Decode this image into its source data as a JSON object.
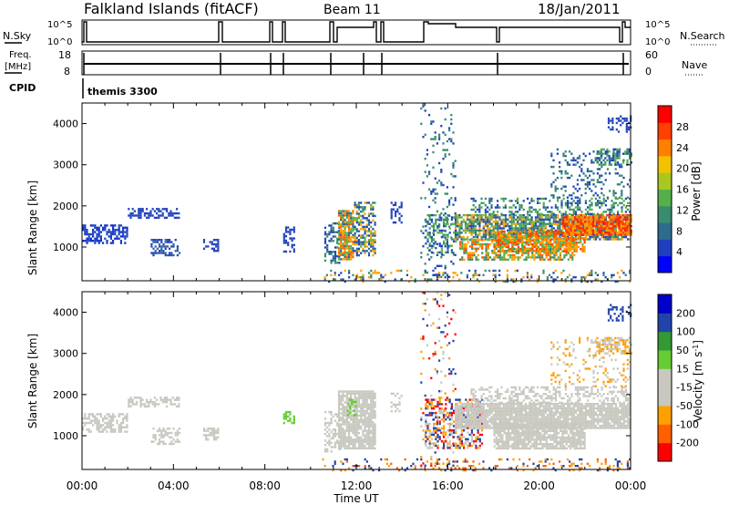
{
  "header": {
    "title": "Falkland Islands (fitACF)",
    "beam": "Beam 11",
    "date": "18/Jan/2011"
  },
  "status_panels": {
    "nsky_label": "N.Sky",
    "nsearch_label": "N.Search",
    "nsky_ticks": [
      "10^5",
      "10^0"
    ],
    "nsearch_ticks": [
      "10^5",
      "10^0"
    ],
    "freq_label_top": "Freq.",
    "freq_label_bottom": "[MHz]",
    "freq_ticks": [
      "18",
      "8"
    ],
    "nave_label": "Nave",
    "nave_ticks": [
      "60",
      "0"
    ],
    "cpid_label": "CPID",
    "cpid_value": "themis 3300"
  },
  "chart_data": [
    {
      "type": "heatmap",
      "id": "power",
      "ylabel": "Slant Range [km]",
      "yticks": [
        "4000",
        "3000",
        "2000",
        "1000"
      ],
      "ylim": [
        180,
        4500
      ],
      "xlim": [
        0,
        24
      ],
      "colorbar_label": "Power [dB]",
      "colorbar_ticks": [
        "28",
        "24",
        "20",
        "16",
        "12",
        "8",
        "4"
      ],
      "colorbar_colors": [
        "#0000ff",
        "#1f3fbf",
        "#2e6b8f",
        "#3a8c6e",
        "#55b04a",
        "#a8c820",
        "#f2c200",
        "#ff8000",
        "#ff4000",
        "#ff0000"
      ],
      "blobs": [
        {
          "t": [
            0.0,
            2.0
          ],
          "r": [
            1100,
            1550
          ],
          "c": [
            "#2244bb",
            "#1133cc"
          ],
          "d": 0.55
        },
        {
          "t": [
            2.0,
            4.2
          ],
          "r": [
            1700,
            1950
          ],
          "c": [
            "#2244bb"
          ],
          "d": 0.45
        },
        {
          "t": [
            3.0,
            4.3
          ],
          "r": [
            800,
            1200
          ],
          "c": [
            "#2244bb",
            "#3366aa"
          ],
          "d": 0.5
        },
        {
          "t": [
            5.3,
            6.0
          ],
          "r": [
            900,
            1200
          ],
          "c": [
            "#2244bb"
          ],
          "d": 0.6
        },
        {
          "t": [
            8.8,
            9.3
          ],
          "r": [
            900,
            1500
          ],
          "c": [
            "#2244bb"
          ],
          "d": 0.5
        },
        {
          "t": [
            10.6,
            11.3
          ],
          "r": [
            600,
            1600
          ],
          "c": [
            "#2244bb",
            "#3a8c6e"
          ],
          "d": 0.45
        },
        {
          "t": [
            11.2,
            11.9
          ],
          "r": [
            700,
            1900
          ],
          "c": [
            "#ff6000",
            "#ffa000",
            "#55b04a",
            "#2e6b8f"
          ],
          "d": 0.8
        },
        {
          "t": [
            11.9,
            12.8
          ],
          "r": [
            800,
            2100
          ],
          "c": [
            "#55b04a",
            "#2e6b8f",
            "#ffa000",
            "#2244bb"
          ],
          "d": 0.55
        },
        {
          "t": [
            13.5,
            14.0
          ],
          "r": [
            1600,
            2100
          ],
          "c": [
            "#2244bb"
          ],
          "d": 0.35
        },
        {
          "t": [
            14.8,
            16.3
          ],
          "r": [
            200,
            4500
          ],
          "c": [
            "#2244bb",
            "#3a8c6e"
          ],
          "d": 0.12
        },
        {
          "t": [
            15.0,
            16.4
          ],
          "r": [
            800,
            1800
          ],
          "c": [
            "#2244bb",
            "#55b04a",
            "#3a8c6e"
          ],
          "d": 0.4
        },
        {
          "t": [
            16.3,
            24.0
          ],
          "r": [
            1200,
            1800
          ],
          "c": [
            "#55b04a",
            "#3a8c6e",
            "#2e6b8f",
            "#2244bb",
            "#ffa000"
          ],
          "d": 0.75
        },
        {
          "t": [
            16.5,
            21.5
          ],
          "r": [
            700,
            1200
          ],
          "c": [
            "#ff6000",
            "#ffa000",
            "#55b04a",
            "#3a8c6e"
          ],
          "d": 0.6
        },
        {
          "t": [
            18.0,
            22.0
          ],
          "r": [
            900,
            1400
          ],
          "c": [
            "#ff4000",
            "#ff8000",
            "#ffa000",
            "#55b04a"
          ],
          "d": 0.7
        },
        {
          "t": [
            21.0,
            24.0
          ],
          "r": [
            1300,
            1800
          ],
          "c": [
            "#ff2000",
            "#ff4000",
            "#ff8000",
            "#ffa000"
          ],
          "d": 0.85
        },
        {
          "t": [
            17.0,
            24.0
          ],
          "r": [
            1800,
            2200
          ],
          "c": [
            "#2244bb",
            "#3a8c6e",
            "#55b04a"
          ],
          "d": 0.35
        },
        {
          "t": [
            20.5,
            24.0
          ],
          "r": [
            2200,
            3400
          ],
          "c": [
            "#2244bb",
            "#3a8c6e",
            "#2e6b8f"
          ],
          "d": 0.2
        },
        {
          "t": [
            22.5,
            24.0
          ],
          "r": [
            3000,
            3400
          ],
          "c": [
            "#3a8c6e",
            "#55b04a",
            "#2244bb"
          ],
          "d": 0.5
        },
        {
          "t": [
            23.0,
            24.0
          ],
          "r": [
            3800,
            4200
          ],
          "c": [
            "#2244bb"
          ],
          "d": 0.4
        },
        {
          "t": [
            10.5,
            24.0
          ],
          "r": [
            180,
            450
          ],
          "c": [
            "#2244bb",
            "#3a8c6e",
            "#ffa000"
          ],
          "d": 0.2
        }
      ]
    },
    {
      "type": "heatmap",
      "id": "velocity",
      "ylabel": "Slant Range [km]",
      "yticks": [
        "4000",
        "3000",
        "2000",
        "1000"
      ],
      "ylim": [
        180,
        4500
      ],
      "xlim": [
        0,
        24
      ],
      "xticks": [
        "00:00",
        "04:00",
        "08:00",
        "12:00",
        "16:00",
        "20:00",
        "00:00"
      ],
      "xlabel": "Time UT",
      "colorbar_label": "Velocity [m s^-1]",
      "colorbar_ticks": [
        "200",
        "100",
        "50",
        "15",
        "-15",
        "-50",
        "-100",
        "-200"
      ],
      "colorbar_colors": [
        "#ff0000",
        "#ff6000",
        "#ffa000",
        "#c8c8c0",
        "#c8c8c0",
        "#66cc33",
        "#339933",
        "#2244aa",
        "#0000cc"
      ],
      "blobs": [
        {
          "t": [
            0.0,
            2.0
          ],
          "r": [
            1100,
            1550
          ],
          "c": [
            "#c8c8c0"
          ],
          "d": 0.55
        },
        {
          "t": [
            2.0,
            4.2
          ],
          "r": [
            1700,
            1950
          ],
          "c": [
            "#c8c8c0"
          ],
          "d": 0.45
        },
        {
          "t": [
            3.0,
            4.3
          ],
          "r": [
            800,
            1200
          ],
          "c": [
            "#c8c8c0"
          ],
          "d": 0.5
        },
        {
          "t": [
            5.3,
            6.0
          ],
          "r": [
            900,
            1200
          ],
          "c": [
            "#c8c8c0"
          ],
          "d": 0.6
        },
        {
          "t": [
            8.8,
            9.3
          ],
          "r": [
            1300,
            1600
          ],
          "c": [
            "#66cc33"
          ],
          "d": 0.6
        },
        {
          "t": [
            10.6,
            11.3
          ],
          "r": [
            600,
            1600
          ],
          "c": [
            "#c8c8c0"
          ],
          "d": 0.45
        },
        {
          "t": [
            11.2,
            12.8
          ],
          "r": [
            700,
            2100
          ],
          "c": [
            "#c8c8c0"
          ],
          "d": 0.85
        },
        {
          "t": [
            11.5,
            12.0
          ],
          "r": [
            1500,
            1900
          ],
          "c": [
            "#66cc33"
          ],
          "d": 0.35
        },
        {
          "t": [
            13.5,
            14.0
          ],
          "r": [
            1600,
            2100
          ],
          "c": [
            "#c8c8c0"
          ],
          "d": 0.35
        },
        {
          "t": [
            14.8,
            16.3
          ],
          "r": [
            200,
            4500
          ],
          "c": [
            "#2244aa",
            "#ff0000",
            "#ffa000",
            "#c8c8c0"
          ],
          "d": 0.1
        },
        {
          "t": [
            15.0,
            17.5
          ],
          "r": [
            700,
            1900
          ],
          "c": [
            "#c8c8c0",
            "#ffa000",
            "#2244aa",
            "#ff0000"
          ],
          "d": 0.5
        },
        {
          "t": [
            16.3,
            24.0
          ],
          "r": [
            1200,
            1800
          ],
          "c": [
            "#c8c8c0"
          ],
          "d": 0.9
        },
        {
          "t": [
            18.0,
            22.0
          ],
          "r": [
            700,
            1300
          ],
          "c": [
            "#c8c8c0"
          ],
          "d": 0.85
        },
        {
          "t": [
            17.0,
            24.0
          ],
          "r": [
            1800,
            2200
          ],
          "c": [
            "#c8c8c0"
          ],
          "d": 0.4
        },
        {
          "t": [
            20.5,
            24.0
          ],
          "r": [
            2200,
            3400
          ],
          "c": [
            "#c8c8c0",
            "#ffa000"
          ],
          "d": 0.15
        },
        {
          "t": [
            22.5,
            24.0
          ],
          "r": [
            3000,
            3400
          ],
          "c": [
            "#c8c8c0",
            "#ffa000"
          ],
          "d": 0.55
        },
        {
          "t": [
            23.0,
            24.0
          ],
          "r": [
            3800,
            4200
          ],
          "c": [
            "#2244aa"
          ],
          "d": 0.4
        },
        {
          "t": [
            10.5,
            24.0
          ],
          "r": [
            180,
            450
          ],
          "c": [
            "#ffa000",
            "#ff6000",
            "#2244aa"
          ],
          "d": 0.2
        }
      ]
    }
  ]
}
